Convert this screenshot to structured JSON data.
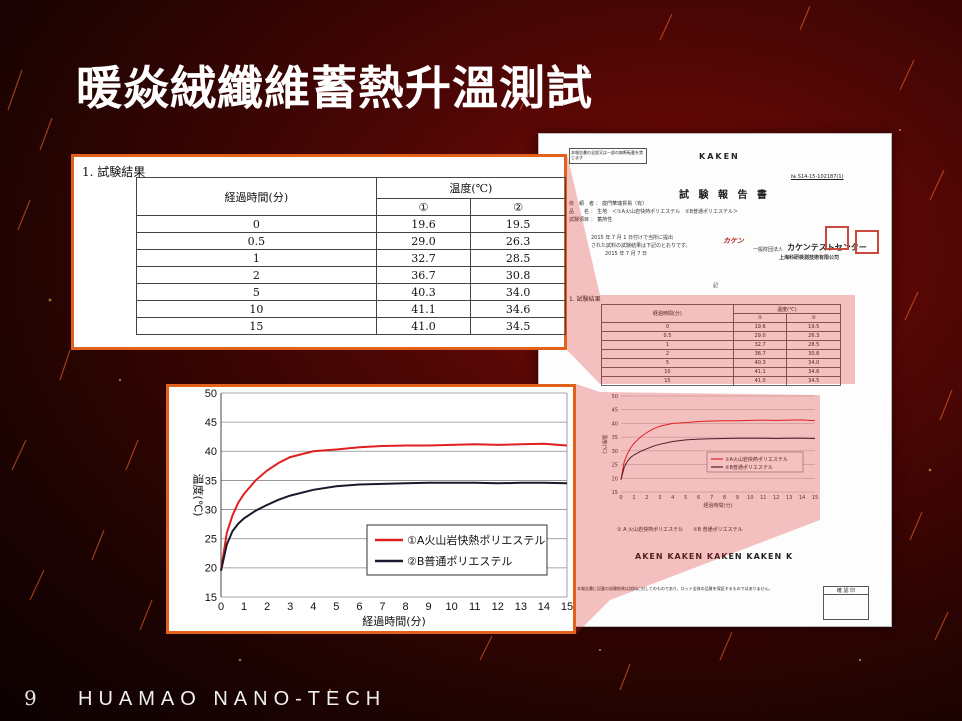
{
  "slide": {
    "title": "暖焱絨纖維蓄熱升溫測試",
    "page_number": "9",
    "brand": "HUAMAO NANO-TECH"
  },
  "colors": {
    "accent_border": "#e2611d",
    "series1": "#e0201f",
    "series2": "#1a1a2e"
  },
  "table": {
    "section_title": "1.  試験結果",
    "col_time_header": "経過時間(分)",
    "col_temp_header": "温度(℃)",
    "sub_headers": [
      "①",
      "②"
    ],
    "rows": [
      [
        "0",
        "19.6",
        "19.5"
      ],
      [
        "0.5",
        "29.0",
        "26.3"
      ],
      [
        "1",
        "32.7",
        "28.5"
      ],
      [
        "2",
        "36.7",
        "30.8"
      ],
      [
        "5",
        "40.3",
        "34.0"
      ],
      [
        "10",
        "41.1",
        "34.6"
      ],
      [
        "15",
        "41.0",
        "34.5"
      ]
    ]
  },
  "report": {
    "stamp_note": "本報告書の全部又は一部の無断転載を禁じます",
    "header": "KAKEN",
    "doc_no": "№ S14-15-102187(1)",
    "title": "試 験 報 告 書",
    "client_line": "依　頼　者 ： 廈門華瑞貿易（有）",
    "sample_line": "品　　名 ： 生地　＜①A火山岩快熱ポリエステル　②B普通ポリエステル＞",
    "item_line": "試験項目 ： 蓄熱性",
    "date_line1": "2015 年 7 月 1 日付けで当所に提出",
    "date_line2": "された試料の試験結果は下記のとおりです。",
    "date_line3": "2015 年 7 月 7 日",
    "logo": "カケン",
    "center": "カケンテストセンター",
    "center_sub": "一般財団法人",
    "center_branch": "上海科研検測技術有限公司",
    "note": "記",
    "section": "1.  試験結果",
    "legend_line": "①  A 火山岩快熱ポリエステル　　②B 普通ポリエステル",
    "kaken_repeat": "AKEN   KAKEN   KAKEN   KAKEN   K",
    "footer_note": "本報告書に記載の試験結果は試料に対してのものであり、ロット全体の品質を保証するものではありません。",
    "stamp_label": "確 認 印"
  },
  "chart_data": {
    "type": "line",
    "xlabel": "経過時間(分)",
    "ylabel": "温度(℃)",
    "xlim": [
      0,
      15
    ],
    "ylim": [
      15,
      50
    ],
    "xticks": [
      "0",
      "1",
      "2",
      "3",
      "4",
      "5",
      "6",
      "7",
      "8",
      "9",
      "10",
      "11",
      "12",
      "13",
      "14",
      "15"
    ],
    "yticks": [
      "15",
      "20",
      "25",
      "30",
      "35",
      "40",
      "45",
      "50"
    ],
    "grid": true,
    "legend_position": "lower-right",
    "x": [
      0,
      0.25,
      0.5,
      0.75,
      1,
      1.5,
      2,
      2.5,
      3,
      4,
      5,
      6,
      7,
      8,
      9,
      10,
      11,
      12,
      13,
      14,
      15
    ],
    "series": [
      {
        "name": "①A火山岩快熱ポリエステル",
        "color": "#e0201f",
        "values": [
          19.6,
          26.0,
          29.0,
          31.2,
          32.7,
          35.0,
          36.7,
          38.0,
          39.0,
          40.0,
          40.3,
          40.7,
          40.9,
          41.0,
          41.0,
          41.1,
          41.2,
          41.1,
          41.2,
          41.3,
          41.0
        ]
      },
      {
        "name": "②B普通ポリエステル",
        "color": "#1a1a2e",
        "values": [
          19.5,
          24.0,
          26.3,
          27.6,
          28.5,
          29.8,
          30.8,
          31.7,
          32.4,
          33.4,
          34.0,
          34.3,
          34.4,
          34.5,
          34.6,
          34.6,
          34.6,
          34.5,
          34.6,
          34.6,
          34.5
        ]
      }
    ]
  }
}
